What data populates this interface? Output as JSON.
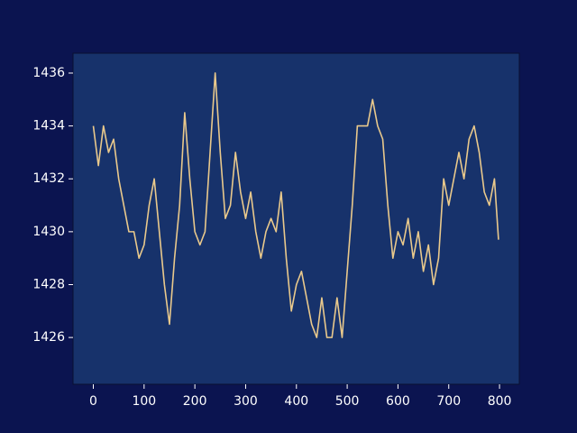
{
  "chart_data": {
    "type": "line",
    "x": [
      0,
      10,
      20,
      30,
      40,
      50,
      60,
      70,
      80,
      90,
      100,
      110,
      120,
      130,
      140,
      150,
      160,
      170,
      180,
      190,
      200,
      210,
      220,
      230,
      240,
      250,
      260,
      270,
      280,
      290,
      300,
      310,
      320,
      330,
      340,
      350,
      360,
      370,
      380,
      390,
      400,
      410,
      420,
      430,
      440,
      450,
      460,
      470,
      480,
      490,
      500,
      510,
      520,
      530,
      540,
      550,
      560,
      570,
      580,
      590,
      600,
      610,
      620,
      630,
      640,
      650,
      660,
      670,
      680,
      690,
      700,
      710,
      720,
      730,
      740,
      750,
      760,
      770,
      780,
      790,
      798
    ],
    "series": [
      {
        "color": "#e9c98c",
        "values": [
          1434,
          1432.5,
          1434,
          1433,
          1433.5,
          1432,
          1431,
          1430,
          1430,
          1429,
          1429.5,
          1431,
          1432,
          1430,
          1428,
          1426.5,
          1429,
          1431,
          1434.5,
          1432,
          1430,
          1429.5,
          1430,
          1433,
          1436,
          1433,
          1430.5,
          1431,
          1433,
          1431.5,
          1430.5,
          1431.5,
          1430,
          1429,
          1430,
          1430.5,
          1430,
          1431.5,
          1429,
          1427,
          1428,
          1428.5,
          1427.5,
          1426.5,
          1426,
          1427.5,
          1426,
          1426,
          1427.5,
          1426,
          1428.5,
          1431,
          1434,
          1434,
          1434,
          1435,
          1434,
          1433.5,
          1431,
          1429,
          1430,
          1429.5,
          1430.5,
          1429,
          1430,
          1428.5,
          1429.5,
          1428,
          1429,
          1432,
          1431,
          1432,
          1433,
          1432,
          1433.5,
          1434,
          1433,
          1431.5,
          1431,
          1432,
          1429.7
        ]
      }
    ],
    "xlim": [
      -39.95,
      838.95
    ],
    "xticks": [
      0,
      100,
      200,
      300,
      400,
      500,
      600,
      700,
      800
    ],
    "ylim": [
      1424.23,
      1436.75
    ],
    "yticks": [
      1426,
      1428,
      1430,
      1432,
      1434,
      1436
    ]
  }
}
